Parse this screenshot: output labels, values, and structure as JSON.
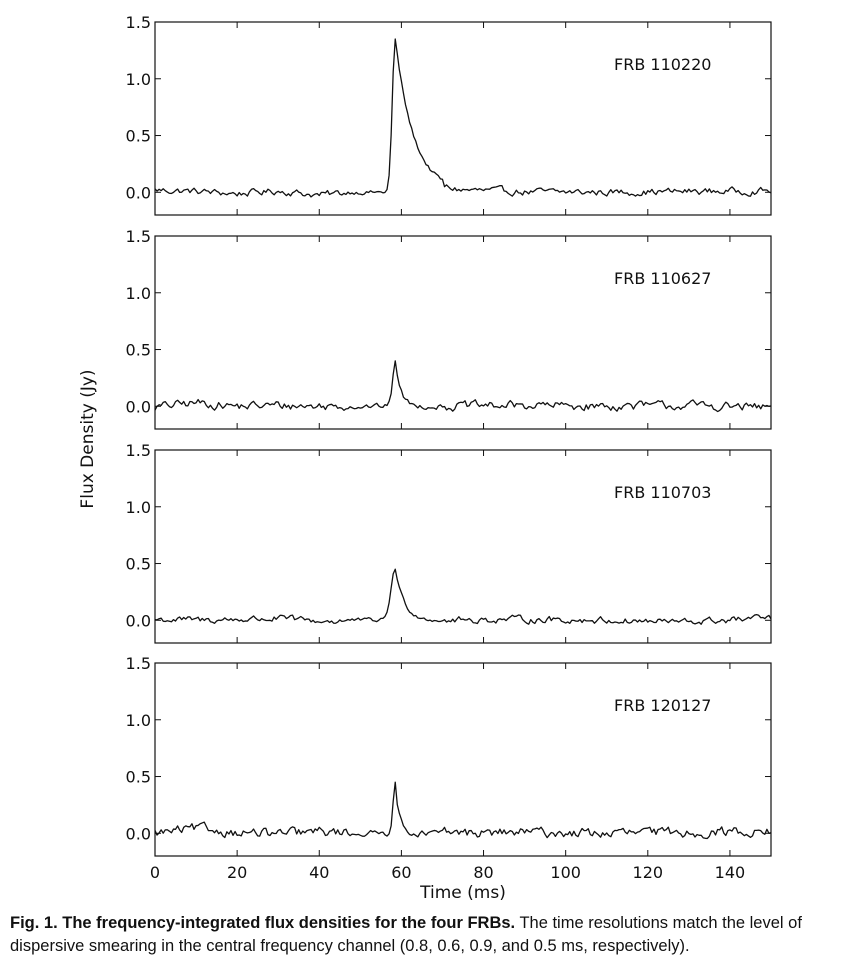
{
  "chart_data": {
    "type": "line",
    "xlabel": "Time (ms)",
    "ylabel": "Flux Density (Jy)",
    "xlim": [
      0,
      150
    ],
    "ylim": [
      -0.2,
      1.5
    ],
    "x_ticks": [
      0,
      20,
      40,
      60,
      80,
      100,
      120,
      140
    ],
    "y_ticks": [
      0.0,
      0.5,
      1.0,
      1.5
    ],
    "x_tick_labels": [
      "0",
      "20",
      "40",
      "60",
      "80",
      "100",
      "120",
      "140"
    ],
    "y_tick_labels": [
      "0.0",
      "0.5",
      "1.0",
      "1.5"
    ],
    "grid": false,
    "legend": "none",
    "panels": [
      {
        "label": "FRB 110220",
        "noise": 0.035,
        "peak": {
          "t": 58.5,
          "amp": 1.35,
          "rise": 1.0,
          "decay": 4.5
        },
        "points": [
          [
            0,
            0.05
          ],
          [
            10,
            0.02
          ],
          [
            20,
            -0.03
          ],
          [
            30,
            0.03
          ],
          [
            40,
            -0.06
          ],
          [
            50,
            0.02
          ],
          [
            56,
            0.08
          ],
          [
            58.5,
            1.35
          ],
          [
            60,
            1.05
          ],
          [
            62,
            0.7
          ],
          [
            64,
            0.35
          ],
          [
            68,
            0.15
          ],
          [
            75,
            0.05
          ],
          [
            90,
            0.01
          ],
          [
            110,
            0.0
          ],
          [
            130,
            0.02
          ],
          [
            150,
            0.03
          ]
        ]
      },
      {
        "label": "FRB 110627",
        "noise": 0.045,
        "peak": {
          "t": 58.5,
          "amp": 0.4,
          "rise": 0.9,
          "decay": 1.3
        },
        "points": [
          [
            0,
            -0.02
          ],
          [
            10,
            0.08
          ],
          [
            20,
            0.0
          ],
          [
            30,
            0.02
          ],
          [
            40,
            0.0
          ],
          [
            50,
            0.03
          ],
          [
            58.5,
            0.4
          ],
          [
            61,
            0.05
          ],
          [
            70,
            0.0
          ],
          [
            90,
            0.02
          ],
          [
            110,
            0.0
          ],
          [
            130,
            0.02
          ],
          [
            150,
            -0.03
          ]
        ]
      },
      {
        "label": "FRB 110703",
        "noise": 0.035,
        "peak": {
          "t": 58.5,
          "amp": 0.45,
          "rise": 1.5,
          "decay": 2.2
        },
        "points": [
          [
            0,
            0.02
          ],
          [
            10,
            0.0
          ],
          [
            20,
            0.02
          ],
          [
            30,
            0.04
          ],
          [
            40,
            -0.02
          ],
          [
            50,
            0.0
          ],
          [
            58.5,
            0.48
          ],
          [
            62,
            0.12
          ],
          [
            70,
            0.0
          ],
          [
            90,
            0.02
          ],
          [
            110,
            0.0
          ],
          [
            130,
            -0.04
          ],
          [
            150,
            0.05
          ]
        ]
      },
      {
        "label": "FRB 120127",
        "noise": 0.05,
        "peak": {
          "t": 58.5,
          "amp": 0.45,
          "rise": 0.8,
          "decay": 1.0
        },
        "points": [
          [
            0,
            0.0
          ],
          [
            10,
            0.1
          ],
          [
            20,
            0.02
          ],
          [
            30,
            -0.02
          ],
          [
            40,
            0.03
          ],
          [
            50,
            0.02
          ],
          [
            55,
            0.12
          ],
          [
            58.5,
            0.5
          ],
          [
            61,
            0.05
          ],
          [
            70,
            0.0
          ],
          [
            90,
            0.02
          ],
          [
            110,
            0.0
          ],
          [
            130,
            0.02
          ],
          [
            150,
            0.05
          ]
        ]
      }
    ]
  },
  "caption": {
    "bold": "Fig. 1. The frequency-integrated flux densities for the four FRBs.",
    "text": " The time resolutions match the level of dispersive smearing in the central frequency channel (0.8, 0.6, 0.9, and 0.5 ms, respectively)."
  }
}
